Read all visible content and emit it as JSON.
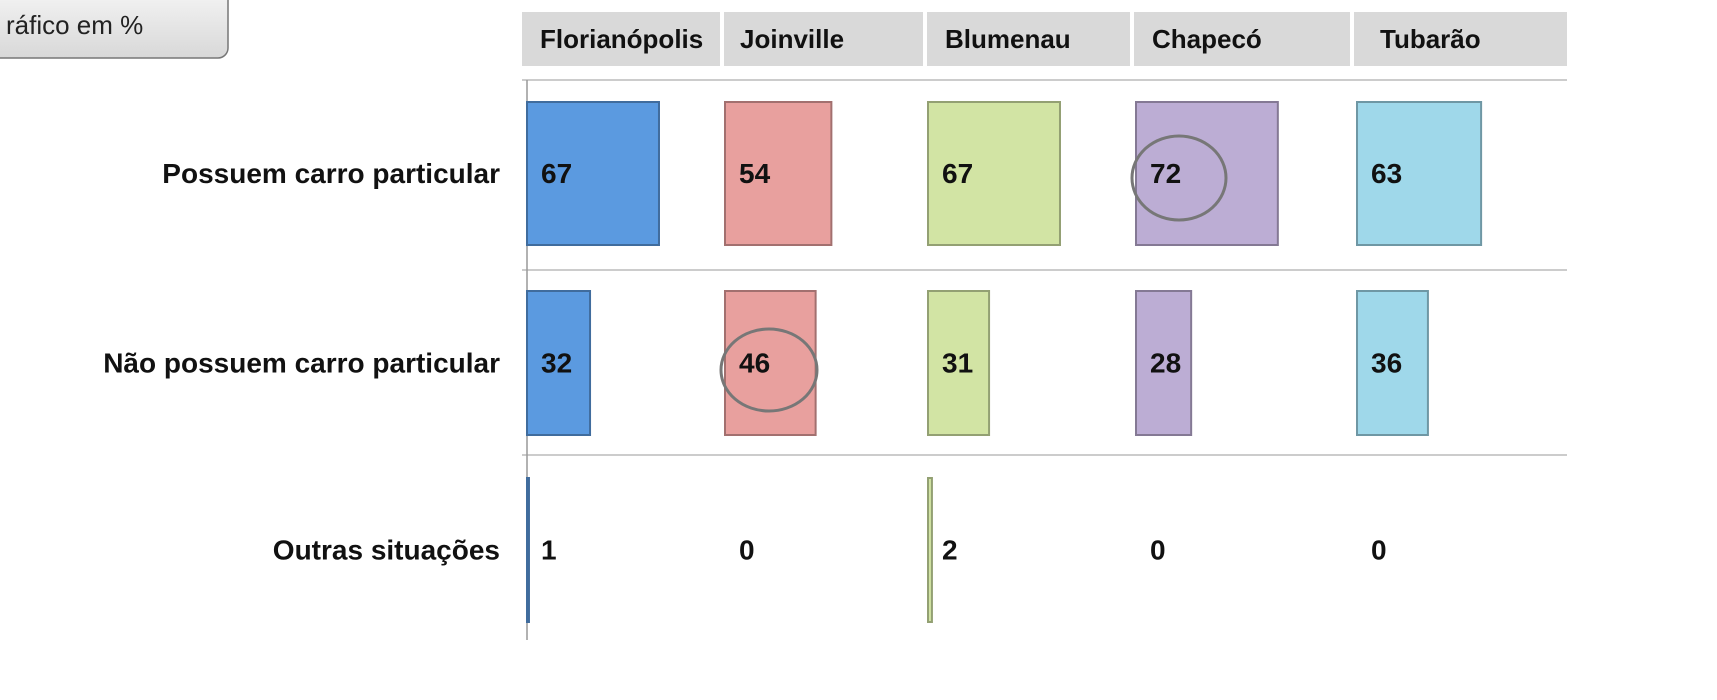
{
  "chart_data": {
    "type": "bar",
    "subtitle": "ráfico em %",
    "categories": [
      "Possuem carro particular",
      "Não possuem carro particular",
      "Outras situações"
    ],
    "series": [
      {
        "name": "Florianópolis",
        "color": "#5b9ae0",
        "values": [
          67,
          32,
          1
        ]
      },
      {
        "name": "Joinville",
        "color": "#e8a09e",
        "values": [
          54,
          46,
          0
        ]
      },
      {
        "name": "Blumenau",
        "color": "#d2e4a4",
        "values": [
          67,
          31,
          2
        ]
      },
      {
        "name": "Chapecó",
        "color": "#bcadd4",
        "values": [
          72,
          28,
          0
        ]
      },
      {
        "name": "Tubarão",
        "color": "#9fd8ea",
        "values": [
          63,
          36,
          0
        ]
      }
    ]
  }
}
